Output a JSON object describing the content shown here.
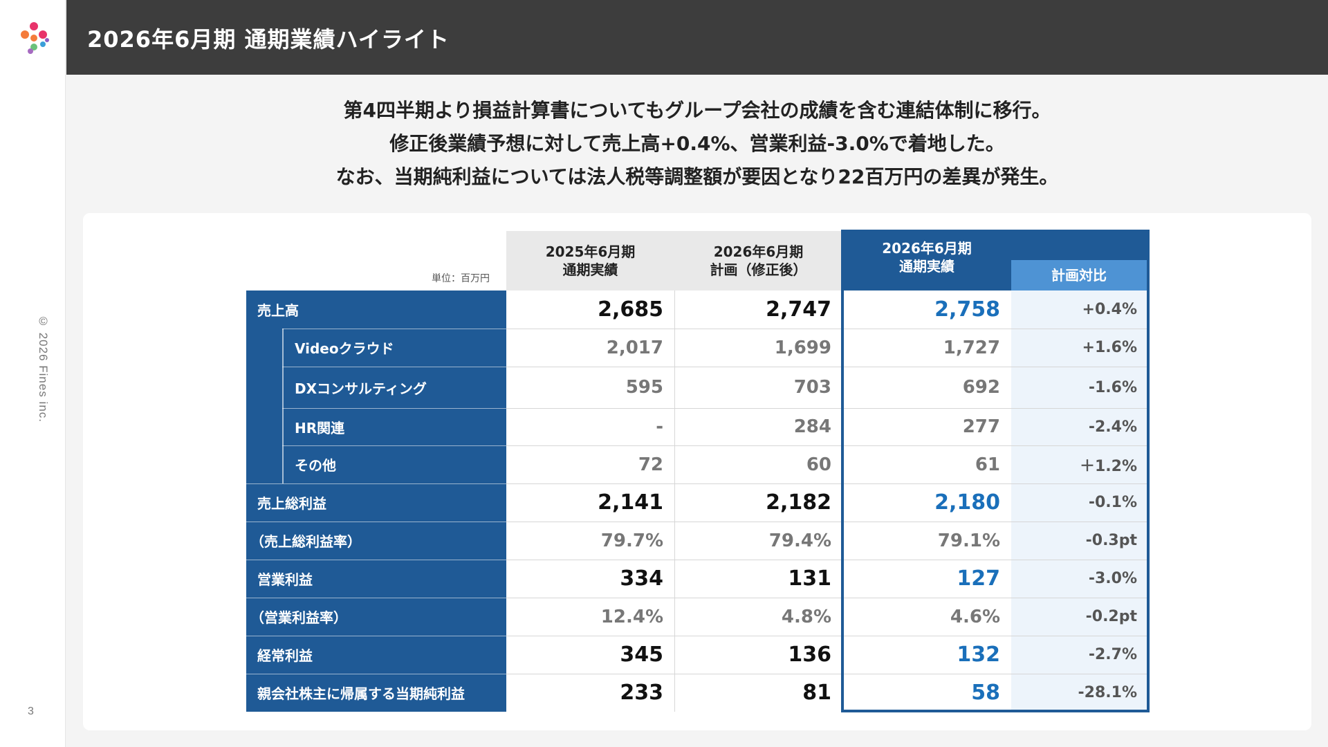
{
  "brand": {
    "logo_icon": "fines-logo-icon",
    "copyright": "© 2026 Fines inc."
  },
  "page": {
    "number": "3"
  },
  "header": {
    "title": "2026年6月期 通期業績ハイライト"
  },
  "summary": [
    "第4四半期より損益計算書についてもグループ会社の成績を含む連結体制に移行。",
    "修正後業績予想に対して売上高+0.4%、営業利益-3.0%で着地した。",
    "なお、当期純利益については法人税等調整額が要因となり22百万円の差異が発生。"
  ],
  "table": {
    "unit": "単位：百万円",
    "columns": [
      {
        "line1": "2025年6月期",
        "line2": "通期実績"
      },
      {
        "line1": "2026年6月期",
        "line2": "計画（修正後）"
      },
      {
        "line1": "2026年6月期",
        "line2": "通期実績"
      },
      {
        "line1": "",
        "line2": "計画対比"
      }
    ],
    "rows": [
      {
        "label": "売上高",
        "type": "main",
        "values": [
          "2,685",
          "2,747",
          "2,758",
          "+0.4%"
        ]
      },
      {
        "label": "Videoクラウド",
        "type": "sub",
        "values": [
          "2,017",
          "1,699",
          "1,727",
          "+1.6%"
        ]
      },
      {
        "label": "DXコンサルティング",
        "type": "sub",
        "values": [
          "595",
          "703",
          "692",
          "-1.6%"
        ]
      },
      {
        "label": "HR関連",
        "type": "sub",
        "values": [
          "-",
          "284",
          "277",
          "-2.4%"
        ]
      },
      {
        "label": "その他",
        "type": "sub",
        "values": [
          "72",
          "60",
          "61",
          "＋1.2%"
        ]
      },
      {
        "label": "売上総利益",
        "type": "main",
        "values": [
          "2,141",
          "2,182",
          "2,180",
          "-0.1%"
        ]
      },
      {
        "label": "（売上総利益率）",
        "type": "ratio",
        "values": [
          "79.7%",
          "79.4%",
          "79.1%",
          "-0.3pt"
        ]
      },
      {
        "label": "営業利益",
        "type": "main",
        "values": [
          "334",
          "131",
          "127",
          "-3.0%"
        ]
      },
      {
        "label": "（営業利益率）",
        "type": "ratio",
        "values": [
          "12.4%",
          "4.8%",
          "4.6%",
          "-0.2pt"
        ]
      },
      {
        "label": "経常利益",
        "type": "main",
        "values": [
          "345",
          "136",
          "132",
          "-2.7%"
        ]
      },
      {
        "label": "親会社株主に帰属する当期純利益",
        "type": "main",
        "values": [
          "233",
          "81",
          "58",
          "-28.1%"
        ]
      }
    ]
  },
  "colors": {
    "header_bg": "#3d3d3d",
    "label_blue": "#1f5a96",
    "accent_blue_text": "#1a6fba",
    "plan_compare_header": "#4e93d4",
    "plan_compare_bg": "#edf4fb"
  }
}
